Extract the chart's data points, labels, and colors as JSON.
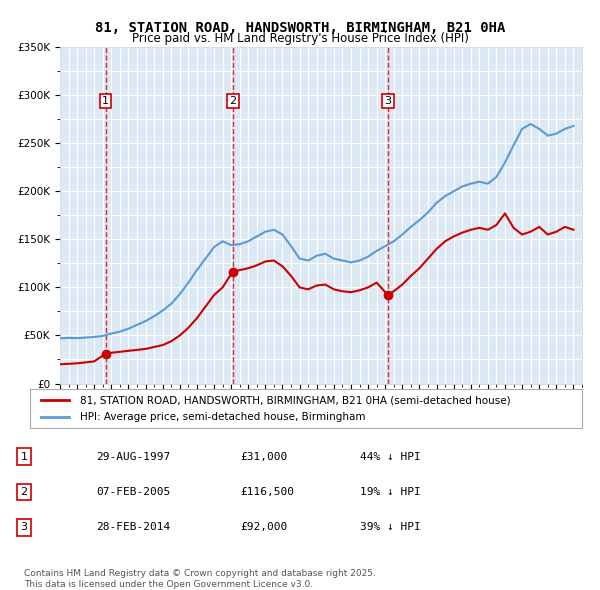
{
  "title": "81, STATION ROAD, HANDSWORTH, BIRMINGHAM, B21 0HA",
  "subtitle": "Price paid vs. HM Land Registry's House Price Index (HPI)",
  "legend_label_red": "81, STATION ROAD, HANDSWORTH, BIRMINGHAM, B21 0HA (semi-detached house)",
  "legend_label_blue": "HPI: Average price, semi-detached house, Birmingham",
  "transactions": [
    {
      "num": 1,
      "date_label": "29-AUG-1997",
      "price_label": "£31,000",
      "hpi_label": "44% ↓ HPI",
      "year": 1997.66
    },
    {
      "num": 2,
      "date_label": "07-FEB-2005",
      "price_label": "£116,500",
      "hpi_label": "19% ↓ HPI",
      "year": 2005.1
    },
    {
      "num": 3,
      "date_label": "28-FEB-2014",
      "price_label": "£92,000",
      "hpi_label": "39% ↓ HPI",
      "year": 2014.16
    }
  ],
  "transaction_prices": [
    31000,
    116500,
    92000
  ],
  "footer": "Contains HM Land Registry data © Crown copyright and database right 2025.\nThis data is licensed under the Open Government Licence v3.0.",
  "ylim": [
    0,
    350000
  ],
  "yticks": [
    0,
    50000,
    100000,
    150000,
    200000,
    250000,
    300000,
    350000
  ],
  "background_color": "#dce9f5",
  "plot_bg_color": "#dce9f5",
  "red_color": "#cc0000",
  "blue_color": "#5b9bd5",
  "grid_color": "#ffffff",
  "hpi_data_x": [
    1995.0,
    1995.5,
    1996.0,
    1996.5,
    1997.0,
    1997.5,
    1998.0,
    1998.5,
    1999.0,
    1999.5,
    2000.0,
    2000.5,
    2001.0,
    2001.5,
    2002.0,
    2002.5,
    2003.0,
    2003.5,
    2004.0,
    2004.5,
    2005.0,
    2005.5,
    2006.0,
    2006.5,
    2007.0,
    2007.5,
    2008.0,
    2008.5,
    2009.0,
    2009.5,
    2010.0,
    2010.5,
    2011.0,
    2011.5,
    2012.0,
    2012.5,
    2013.0,
    2013.5,
    2014.0,
    2014.5,
    2015.0,
    2015.5,
    2016.0,
    2016.5,
    2017.0,
    2017.5,
    2018.0,
    2018.5,
    2019.0,
    2019.5,
    2020.0,
    2020.5,
    2021.0,
    2021.5,
    2022.0,
    2022.5,
    2023.0,
    2023.5,
    2024.0,
    2024.5,
    2025.0
  ],
  "hpi_data_y": [
    47000,
    47500,
    47200,
    47800,
    48500,
    49500,
    52000,
    54000,
    57000,
    61000,
    65000,
    70000,
    76000,
    83000,
    93000,
    105000,
    118000,
    130000,
    142000,
    148000,
    144000,
    145000,
    148000,
    153000,
    158000,
    160000,
    155000,
    143000,
    130000,
    128000,
    133000,
    135000,
    130000,
    128000,
    126000,
    128000,
    132000,
    138000,
    143000,
    148000,
    155000,
    163000,
    170000,
    178000,
    188000,
    195000,
    200000,
    205000,
    208000,
    210000,
    208000,
    215000,
    230000,
    248000,
    265000,
    270000,
    265000,
    258000,
    260000,
    265000,
    268000
  ],
  "price_data_x": [
    1995.0,
    1995.5,
    1996.0,
    1996.5,
    1997.0,
    1997.66,
    1998.0,
    1998.5,
    1999.0,
    1999.5,
    2000.0,
    2000.5,
    2001.0,
    2001.5,
    2002.0,
    2002.5,
    2003.0,
    2003.5,
    2004.0,
    2004.5,
    2005.1,
    2005.5,
    2006.0,
    2006.5,
    2007.0,
    2007.5,
    2008.0,
    2008.5,
    2009.0,
    2009.5,
    2010.0,
    2010.5,
    2011.0,
    2011.5,
    2012.0,
    2012.5,
    2013.0,
    2013.5,
    2014.16,
    2014.5,
    2015.0,
    2015.5,
    2016.0,
    2016.5,
    2017.0,
    2017.5,
    2018.0,
    2018.5,
    2019.0,
    2019.5,
    2020.0,
    2020.5,
    2021.0,
    2021.5,
    2022.0,
    2022.5,
    2023.0,
    2023.5,
    2024.0,
    2024.5,
    2025.0
  ],
  "price_data_y": [
    20000,
    20500,
    21000,
    22000,
    23000,
    31000,
    32000,
    33000,
    34000,
    35000,
    36000,
    38000,
    40000,
    44000,
    50000,
    58000,
    68000,
    80000,
    92000,
    100000,
    116500,
    118000,
    120000,
    123000,
    127000,
    128000,
    122000,
    112000,
    100000,
    98000,
    102000,
    103000,
    98000,
    96000,
    95000,
    97000,
    100000,
    105000,
    92000,
    96000,
    103000,
    112000,
    120000,
    130000,
    140000,
    148000,
    153000,
    157000,
    160000,
    162000,
    160000,
    165000,
    177000,
    162000,
    155000,
    158000,
    163000,
    155000,
    158000,
    163000,
    160000
  ]
}
